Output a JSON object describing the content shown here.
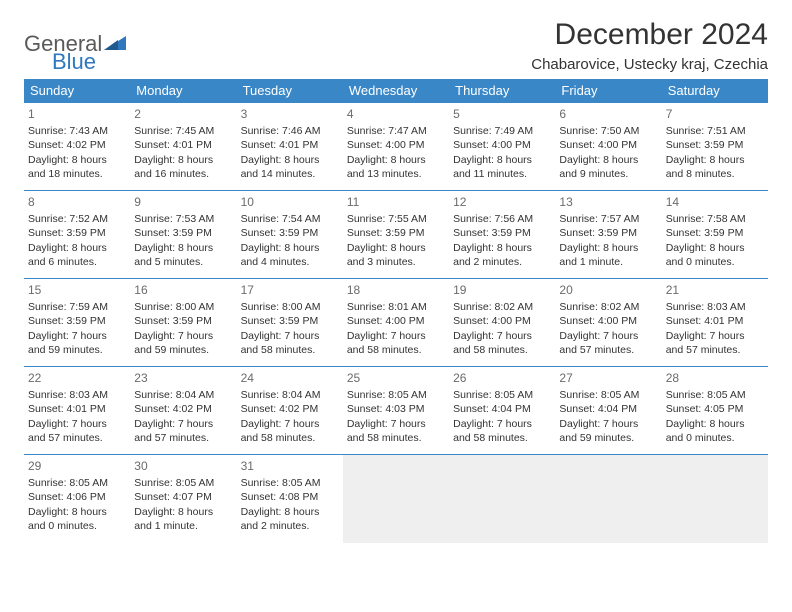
{
  "logo": {
    "text1": "General",
    "text2": "Blue"
  },
  "header": {
    "title": "December 2024",
    "location": "Chabarovice, Ustecky kraj, Czechia"
  },
  "colors": {
    "header_bg": "#3a87c7",
    "header_text": "#ffffff",
    "row_border": "#3a87c7",
    "empty_bg": "#efefef",
    "logo_blue": "#2f78bf",
    "logo_gray": "#5a5a5a",
    "text": "#333333",
    "daynum": "#6b6b6b",
    "background": "#ffffff"
  },
  "typography": {
    "title_fontsize": 30,
    "subtitle_fontsize": 15,
    "header_fontsize": 13,
    "cell_fontsize": 10.5,
    "daynum_fontsize": 12
  },
  "days_of_week": [
    "Sunday",
    "Monday",
    "Tuesday",
    "Wednesday",
    "Thursday",
    "Friday",
    "Saturday"
  ],
  "weeks": [
    [
      {
        "n": "1",
        "sunrise": "Sunrise: 7:43 AM",
        "sunset": "Sunset: 4:02 PM",
        "daylight": "Daylight: 8 hours and 18 minutes."
      },
      {
        "n": "2",
        "sunrise": "Sunrise: 7:45 AM",
        "sunset": "Sunset: 4:01 PM",
        "daylight": "Daylight: 8 hours and 16 minutes."
      },
      {
        "n": "3",
        "sunrise": "Sunrise: 7:46 AM",
        "sunset": "Sunset: 4:01 PM",
        "daylight": "Daylight: 8 hours and 14 minutes."
      },
      {
        "n": "4",
        "sunrise": "Sunrise: 7:47 AM",
        "sunset": "Sunset: 4:00 PM",
        "daylight": "Daylight: 8 hours and 13 minutes."
      },
      {
        "n": "5",
        "sunrise": "Sunrise: 7:49 AM",
        "sunset": "Sunset: 4:00 PM",
        "daylight": "Daylight: 8 hours and 11 minutes."
      },
      {
        "n": "6",
        "sunrise": "Sunrise: 7:50 AM",
        "sunset": "Sunset: 4:00 PM",
        "daylight": "Daylight: 8 hours and 9 minutes."
      },
      {
        "n": "7",
        "sunrise": "Sunrise: 7:51 AM",
        "sunset": "Sunset: 3:59 PM",
        "daylight": "Daylight: 8 hours and 8 minutes."
      }
    ],
    [
      {
        "n": "8",
        "sunrise": "Sunrise: 7:52 AM",
        "sunset": "Sunset: 3:59 PM",
        "daylight": "Daylight: 8 hours and 6 minutes."
      },
      {
        "n": "9",
        "sunrise": "Sunrise: 7:53 AM",
        "sunset": "Sunset: 3:59 PM",
        "daylight": "Daylight: 8 hours and 5 minutes."
      },
      {
        "n": "10",
        "sunrise": "Sunrise: 7:54 AM",
        "sunset": "Sunset: 3:59 PM",
        "daylight": "Daylight: 8 hours and 4 minutes."
      },
      {
        "n": "11",
        "sunrise": "Sunrise: 7:55 AM",
        "sunset": "Sunset: 3:59 PM",
        "daylight": "Daylight: 8 hours and 3 minutes."
      },
      {
        "n": "12",
        "sunrise": "Sunrise: 7:56 AM",
        "sunset": "Sunset: 3:59 PM",
        "daylight": "Daylight: 8 hours and 2 minutes."
      },
      {
        "n": "13",
        "sunrise": "Sunrise: 7:57 AM",
        "sunset": "Sunset: 3:59 PM",
        "daylight": "Daylight: 8 hours and 1 minute."
      },
      {
        "n": "14",
        "sunrise": "Sunrise: 7:58 AM",
        "sunset": "Sunset: 3:59 PM",
        "daylight": "Daylight: 8 hours and 0 minutes."
      }
    ],
    [
      {
        "n": "15",
        "sunrise": "Sunrise: 7:59 AM",
        "sunset": "Sunset: 3:59 PM",
        "daylight": "Daylight: 7 hours and 59 minutes."
      },
      {
        "n": "16",
        "sunrise": "Sunrise: 8:00 AM",
        "sunset": "Sunset: 3:59 PM",
        "daylight": "Daylight: 7 hours and 59 minutes."
      },
      {
        "n": "17",
        "sunrise": "Sunrise: 8:00 AM",
        "sunset": "Sunset: 3:59 PM",
        "daylight": "Daylight: 7 hours and 58 minutes."
      },
      {
        "n": "18",
        "sunrise": "Sunrise: 8:01 AM",
        "sunset": "Sunset: 4:00 PM",
        "daylight": "Daylight: 7 hours and 58 minutes."
      },
      {
        "n": "19",
        "sunrise": "Sunrise: 8:02 AM",
        "sunset": "Sunset: 4:00 PM",
        "daylight": "Daylight: 7 hours and 58 minutes."
      },
      {
        "n": "20",
        "sunrise": "Sunrise: 8:02 AM",
        "sunset": "Sunset: 4:00 PM",
        "daylight": "Daylight: 7 hours and 57 minutes."
      },
      {
        "n": "21",
        "sunrise": "Sunrise: 8:03 AM",
        "sunset": "Sunset: 4:01 PM",
        "daylight": "Daylight: 7 hours and 57 minutes."
      }
    ],
    [
      {
        "n": "22",
        "sunrise": "Sunrise: 8:03 AM",
        "sunset": "Sunset: 4:01 PM",
        "daylight": "Daylight: 7 hours and 57 minutes."
      },
      {
        "n": "23",
        "sunrise": "Sunrise: 8:04 AM",
        "sunset": "Sunset: 4:02 PM",
        "daylight": "Daylight: 7 hours and 57 minutes."
      },
      {
        "n": "24",
        "sunrise": "Sunrise: 8:04 AM",
        "sunset": "Sunset: 4:02 PM",
        "daylight": "Daylight: 7 hours and 58 minutes."
      },
      {
        "n": "25",
        "sunrise": "Sunrise: 8:05 AM",
        "sunset": "Sunset: 4:03 PM",
        "daylight": "Daylight: 7 hours and 58 minutes."
      },
      {
        "n": "26",
        "sunrise": "Sunrise: 8:05 AM",
        "sunset": "Sunset: 4:04 PM",
        "daylight": "Daylight: 7 hours and 58 minutes."
      },
      {
        "n": "27",
        "sunrise": "Sunrise: 8:05 AM",
        "sunset": "Sunset: 4:04 PM",
        "daylight": "Daylight: 7 hours and 59 minutes."
      },
      {
        "n": "28",
        "sunrise": "Sunrise: 8:05 AM",
        "sunset": "Sunset: 4:05 PM",
        "daylight": "Daylight: 8 hours and 0 minutes."
      }
    ],
    [
      {
        "n": "29",
        "sunrise": "Sunrise: 8:05 AM",
        "sunset": "Sunset: 4:06 PM",
        "daylight": "Daylight: 8 hours and 0 minutes."
      },
      {
        "n": "30",
        "sunrise": "Sunrise: 8:05 AM",
        "sunset": "Sunset: 4:07 PM",
        "daylight": "Daylight: 8 hours and 1 minute."
      },
      {
        "n": "31",
        "sunrise": "Sunrise: 8:05 AM",
        "sunset": "Sunset: 4:08 PM",
        "daylight": "Daylight: 8 hours and 2 minutes."
      },
      null,
      null,
      null,
      null
    ]
  ]
}
